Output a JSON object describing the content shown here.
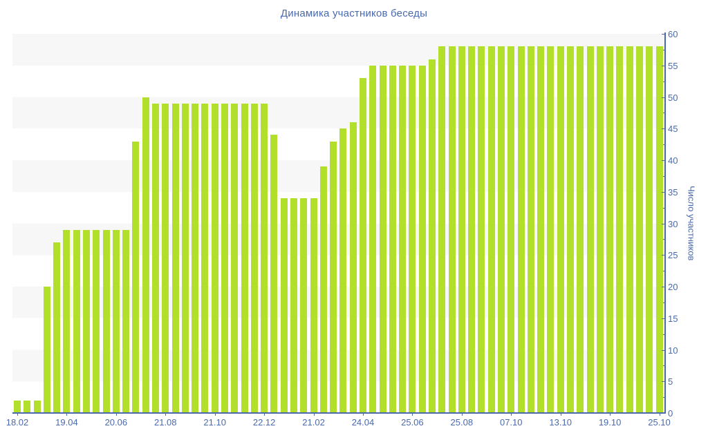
{
  "title": "Динамика участников беседы",
  "chart_data": {
    "type": "bar",
    "title": "Динамика участников беседы",
    "xlabel": "",
    "ylabel": "Число участников",
    "ylim": [
      0,
      60
    ],
    "y_major_tick_step": 5,
    "y_minor_tick_step": 2.5,
    "y_tick_labels": [
      "0",
      "5",
      "10",
      "15",
      "20",
      "25",
      "30",
      "35",
      "40",
      "45",
      "50",
      "55",
      "60"
    ],
    "x_tick_labels": [
      "18.02",
      "19.04",
      "20.06",
      "21.08",
      "21.10",
      "22.12",
      "21.02",
      "24.04",
      "25.06",
      "25.08",
      "07.10",
      "13.10",
      "19.10",
      "25.10"
    ],
    "x_label_every_n_bars": 5,
    "grid": "alternating horizontal bands of 5 units",
    "legend": "none",
    "values": [
      2,
      2,
      2,
      20,
      27,
      29,
      29,
      29,
      29,
      29,
      29,
      29,
      43,
      50,
      49,
      49,
      49,
      49,
      49,
      49,
      49,
      49,
      49,
      49,
      49,
      49,
      44,
      34,
      34,
      34,
      34,
      39,
      43,
      45,
      46,
      53,
      55,
      55,
      55,
      55,
      55,
      55,
      56,
      58,
      58,
      58,
      58,
      58,
      58,
      58,
      58,
      58,
      58,
      58,
      58,
      58,
      58,
      58,
      58,
      58,
      58,
      58,
      58,
      58,
      58,
      58
    ],
    "bar_color": "#b2df2c",
    "stripe_color": "#f7f7f7",
    "axis_color": "#4a69ad",
    "text_color": "#4a69ad"
  }
}
